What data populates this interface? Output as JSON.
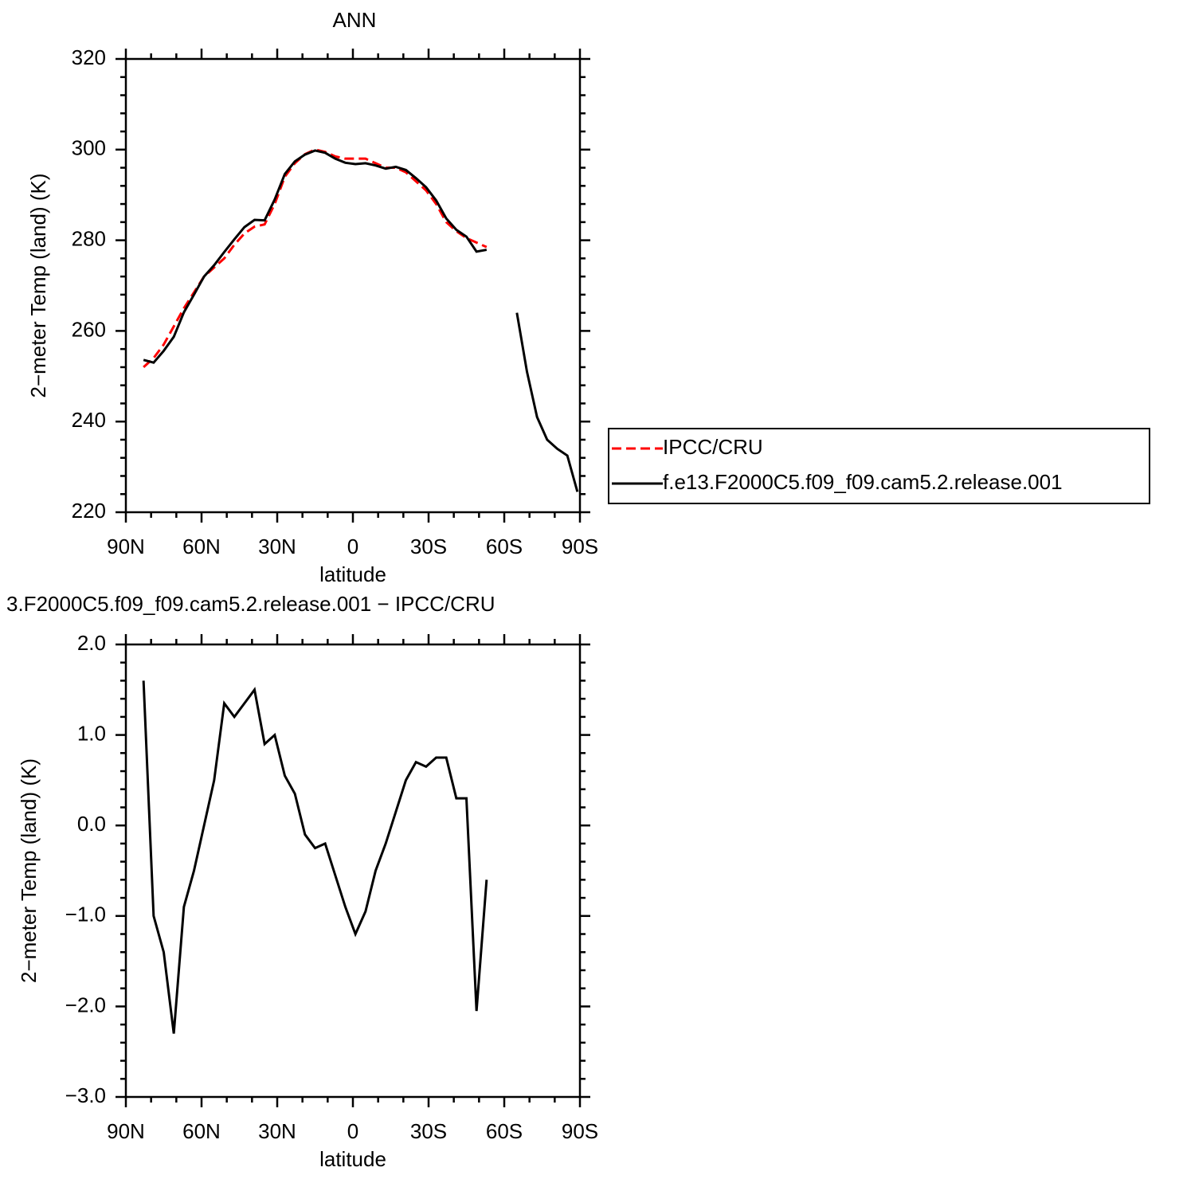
{
  "chart_data": [
    {
      "type": "line",
      "title": "ANN",
      "xlabel": "latitude",
      "ylabel": "2−meter Temp (land) (K)",
      "x": [
        83,
        79,
        75,
        71,
        67,
        63,
        59,
        55,
        51,
        47,
        43,
        39,
        35,
        31,
        27,
        23,
        19,
        15,
        11,
        7,
        3,
        -1,
        -5,
        -9,
        -13,
        -17,
        -21,
        -25,
        -29,
        -33,
        -37,
        -41,
        -45,
        -49,
        -53,
        -57,
        -61,
        -65,
        -69,
        -73,
        -77,
        -81,
        -85,
        -89
      ],
      "series": [
        {
          "name": "IPCC/CRU",
          "color": "#ff0000",
          "dash": true,
          "values": [
            252,
            254,
            257,
            261,
            265,
            268.5,
            272,
            274,
            276,
            279,
            281.5,
            283,
            283.5,
            288,
            294,
            297,
            299,
            300,
            299.5,
            298.5,
            298,
            298,
            298,
            297,
            296,
            296,
            295,
            293,
            291,
            288,
            284,
            282,
            280.5,
            279.5,
            278.5,
            null,
            null,
            null,
            null,
            null,
            null,
            null,
            null,
            null
          ]
        },
        {
          "name": "f.e13.F2000C5.f09_f09.cam5.2.release.001",
          "color": "#000000",
          "dash": false,
          "values": [
            253.6,
            253,
            255.6,
            258.7,
            264.1,
            268,
            272,
            274.5,
            277.4,
            280.2,
            282.9,
            284.5,
            284.4,
            289,
            294.6,
            297.4,
            298.9,
            299.8,
            299.3,
            298,
            297.1,
            296.8,
            297,
            296.5,
            295.8,
            296.2,
            295.5,
            293.7,
            291.7,
            288.8,
            284.8,
            282.3,
            280.8,
            277.5,
            277.9,
            null,
            null,
            264,
            251,
            241,
            236,
            234,
            232.5,
            224.5
          ]
        }
      ],
      "xlim": [
        90,
        -90
      ],
      "xticks": [
        {
          "value": 90,
          "label": "90N"
        },
        {
          "value": 60,
          "label": "60N"
        },
        {
          "value": 30,
          "label": "30N"
        },
        0,
        {
          "value": -30,
          "label": "30S"
        },
        {
          "value": -60,
          "label": "60S"
        },
        {
          "value": -90,
          "label": "90S"
        }
      ],
      "ylim": [
        220,
        320
      ],
      "yticks": [
        220,
        240,
        260,
        280,
        300,
        320
      ],
      "legend": "right"
    },
    {
      "type": "line",
      "title": "3.F2000C5.f09_f09.cam5.2.release.001 − IPCC/CRU",
      "xlabel": "latitude",
      "ylabel": "2−meter Temp (land) (K)",
      "x": [
        83,
        79,
        75,
        71,
        67,
        63,
        59,
        55,
        51,
        47,
        43,
        39,
        35,
        31,
        27,
        23,
        19,
        15,
        11,
        7,
        3,
        -1,
        -5,
        -9,
        -13,
        -17,
        -21,
        -25,
        -29,
        -33,
        -37,
        -41,
        -45,
        -49,
        -53
      ],
      "series": [
        {
          "color": "#000000",
          "dash": false,
          "values": [
            1.6,
            -1.0,
            -1.4,
            -2.3,
            -0.9,
            -0.5,
            0.0,
            0.5,
            1.35,
            1.2,
            1.35,
            1.5,
            0.9,
            1.0,
            0.55,
            0.35,
            -0.1,
            -0.25,
            -0.2,
            -0.55,
            -0.9,
            -1.2,
            -0.95,
            -0.5,
            -0.2,
            0.15,
            0.5,
            0.7,
            0.65,
            0.75,
            0.75,
            0.3,
            0.3,
            -2.05,
            -0.6
          ]
        }
      ],
      "xlim": [
        90,
        -90
      ],
      "xticks": [
        {
          "value": 90,
          "label": "90N"
        },
        {
          "value": 60,
          "label": "60N"
        },
        {
          "value": 30,
          "label": "30N"
        },
        0,
        {
          "value": -30,
          "label": "30S"
        },
        {
          "value": -60,
          "label": "60S"
        },
        {
          "value": -90,
          "label": "90S"
        }
      ],
      "ylim": [
        -3,
        2
      ],
      "yticks": [
        {
          "value": -3,
          "label": "−3.0"
        },
        {
          "value": -2,
          "label": "−2.0"
        },
        {
          "value": -1,
          "label": "−1.0"
        },
        {
          "value": 0,
          "label": "0.0"
        },
        {
          "value": 1,
          "label": "1.0"
        },
        {
          "value": 2,
          "label": "2.0"
        }
      ]
    }
  ]
}
